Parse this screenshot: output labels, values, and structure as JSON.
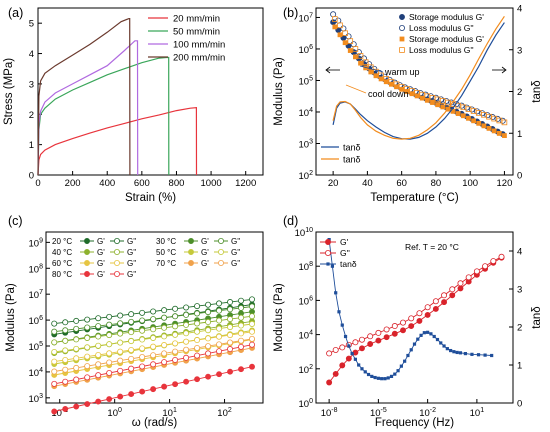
{
  "chart_data": [
    {
      "id": "a",
      "panel_label": "(a)",
      "type": "line",
      "xlabel": "Strain (%)",
      "ylabel": "Stress (MPa)",
      "xlim": [
        0,
        1300
      ],
      "ylim": [
        0,
        5.5
      ],
      "xticks": [
        0,
        200,
        400,
        600,
        800,
        1000,
        1200
      ],
      "yticks": [
        0,
        1,
        2,
        3,
        4,
        5
      ],
      "legend_position": "top-right",
      "series": [
        {
          "name": "20 mm/min",
          "color": "#e8343c",
          "x": [
            0,
            5,
            15,
            40,
            100,
            200,
            300,
            400,
            500,
            600,
            700,
            800,
            880,
            915,
            916
          ],
          "y": [
            0,
            0.5,
            0.68,
            0.82,
            1.0,
            1.2,
            1.38,
            1.55,
            1.7,
            1.85,
            1.98,
            2.12,
            2.2,
            2.22,
            0
          ]
        },
        {
          "name": "50 mm/min",
          "color": "#3aa65a",
          "x": [
            0,
            5,
            15,
            40,
            100,
            200,
            300,
            400,
            500,
            600,
            700,
            740,
            755,
            756
          ],
          "y": [
            0,
            1.5,
            2.0,
            2.2,
            2.5,
            2.8,
            3.05,
            3.3,
            3.5,
            3.7,
            3.85,
            3.87,
            3.87,
            0
          ]
        },
        {
          "name": "100 mm/min",
          "color": "#b06ae0",
          "x": [
            0,
            5,
            15,
            40,
            100,
            200,
            300,
            400,
            500,
            560,
            575,
            576
          ],
          "y": [
            0,
            1.7,
            2.1,
            2.4,
            2.7,
            3.0,
            3.3,
            3.6,
            4.1,
            4.42,
            4.42,
            0
          ]
        },
        {
          "name": "200 mm/min",
          "color": "#6b3a2e",
          "x": [
            0,
            5,
            15,
            40,
            100,
            200,
            300,
            400,
            480,
            525,
            530,
            531
          ],
          "y": [
            0,
            2.6,
            3.1,
            3.35,
            3.6,
            3.95,
            4.3,
            4.7,
            5.05,
            5.15,
            5.15,
            0
          ]
        }
      ]
    },
    {
      "id": "b",
      "panel_label": "(b)",
      "type": "scatter",
      "xlabel": "Temperature (°C)",
      "ylabel": "Modulus (Pa)",
      "y2label": "tanδ",
      "xlim": [
        10,
        125
      ],
      "ylim_log": [
        2,
        7.3
      ],
      "y2lim": [
        0,
        4
      ],
      "xticks": [
        20,
        40,
        60,
        80,
        100,
        120
      ],
      "yticks_exp": [
        2,
        3,
        4,
        5,
        6,
        7
      ],
      "y2ticks": [
        0,
        1,
        2,
        3,
        4
      ],
      "annotations": [
        "warm up",
        "cool down"
      ],
      "legend_position": "top-right",
      "series": [
        {
          "name": "Storage modulus G'",
          "color": "#1f3f7a",
          "marker": "circle-filled",
          "axis": "left",
          "x": [
            20,
            23,
            26,
            29,
            32,
            35,
            38,
            41,
            44,
            47,
            50,
            53,
            56,
            59,
            62,
            65,
            68,
            71,
            74,
            77,
            80,
            83,
            86,
            89,
            92,
            95,
            98,
            101,
            104,
            107,
            110,
            113,
            116,
            119
          ],
          "logy": [
            6.85,
            6.6,
            6.35,
            6.1,
            5.9,
            5.7,
            5.52,
            5.38,
            5.25,
            5.14,
            5.04,
            4.95,
            4.87,
            4.79,
            4.71,
            4.64,
            4.57,
            4.5,
            4.43,
            4.36,
            4.29,
            4.22,
            4.15,
            4.08,
            4.01,
            3.94,
            3.86,
            3.78,
            3.7,
            3.62,
            3.54,
            3.46,
            3.38,
            3.3
          ]
        },
        {
          "name": "Loss modulus G''",
          "color": "#1f3f7a",
          "marker": "circle-open",
          "axis": "left",
          "x": [
            20,
            23,
            26,
            29,
            32,
            35,
            38,
            41,
            44,
            47,
            50,
            53,
            56,
            59,
            62,
            65,
            68,
            71,
            74,
            77,
            80,
            83,
            86,
            89,
            92,
            95,
            98,
            101,
            104,
            107,
            110,
            113,
            116,
            119
          ],
          "logy": [
            7.1,
            6.9,
            6.65,
            6.4,
            6.15,
            5.9,
            5.7,
            5.52,
            5.37,
            5.24,
            5.12,
            5.02,
            4.93,
            4.85,
            4.78,
            4.72,
            4.66,
            4.6,
            4.55,
            4.5,
            4.45,
            4.4,
            4.35,
            4.3,
            4.25,
            4.2,
            4.14,
            4.08,
            4.02,
            3.96,
            3.9,
            3.84,
            3.78,
            3.72
          ]
        },
        {
          "name": "Storage modulus G'",
          "color": "#f28c1e",
          "marker": "square-filled",
          "axis": "left",
          "x": [
            21,
            24,
            27,
            30,
            33,
            36,
            39,
            42,
            45,
            48,
            51,
            54,
            57,
            60,
            63,
            66,
            69,
            72,
            75,
            78,
            81,
            84,
            87,
            90,
            93,
            96,
            99,
            102,
            105,
            108,
            111,
            114,
            117,
            120
          ],
          "logy": [
            6.7,
            6.45,
            6.2,
            5.95,
            5.75,
            5.55,
            5.4,
            5.27,
            5.15,
            5.05,
            4.96,
            4.88,
            4.8,
            4.72,
            4.65,
            4.58,
            4.51,
            4.44,
            4.37,
            4.3,
            4.23,
            4.16,
            4.09,
            4.02,
            3.95,
            3.88,
            3.8,
            3.72,
            3.64,
            3.56,
            3.48,
            3.4,
            3.32,
            3.25
          ]
        },
        {
          "name": "Loss modulus G''",
          "color": "#f28c1e",
          "marker": "square-open",
          "axis": "left",
          "x": [
            21,
            24,
            27,
            30,
            33,
            36,
            39,
            42,
            45,
            48,
            51,
            54,
            57,
            60,
            63,
            66,
            69,
            72,
            75,
            78,
            81,
            84,
            87,
            90,
            93,
            96,
            99,
            102,
            105,
            108,
            111,
            114,
            117,
            120
          ],
          "logy": [
            6.95,
            6.75,
            6.5,
            6.25,
            6.0,
            5.78,
            5.58,
            5.42,
            5.28,
            5.16,
            5.05,
            4.96,
            4.88,
            4.8,
            4.73,
            4.67,
            4.61,
            4.55,
            4.5,
            4.45,
            4.4,
            4.35,
            4.3,
            4.25,
            4.2,
            4.15,
            4.09,
            4.03,
            3.97,
            3.91,
            3.85,
            3.79,
            3.73,
            3.67
          ]
        },
        {
          "name": "tanδ",
          "color": "#1f4e9a",
          "marker": "line",
          "axis": "right",
          "x": [
            20,
            22,
            24,
            27,
            30,
            33,
            36,
            40,
            45,
            50,
            55,
            60,
            65,
            70,
            75,
            80,
            85,
            90,
            95,
            100,
            105,
            110,
            115,
            120
          ],
          "y": [
            1.2,
            1.6,
            1.72,
            1.75,
            1.7,
            1.58,
            1.45,
            1.3,
            1.15,
            1.02,
            0.92,
            0.87,
            0.86,
            0.9,
            1.0,
            1.15,
            1.35,
            1.6,
            1.9,
            2.25,
            2.6,
            3.0,
            3.35,
            3.65
          ]
        },
        {
          "name": "tanδ",
          "color": "#f28c1e",
          "marker": "line",
          "axis": "right",
          "x": [
            20,
            22,
            24,
            27,
            30,
            33,
            36,
            40,
            45,
            50,
            55,
            60,
            65,
            70,
            75,
            80,
            85,
            90,
            95,
            100,
            105,
            110,
            115,
            120
          ],
          "y": [
            1.3,
            1.65,
            1.75,
            1.76,
            1.7,
            1.55,
            1.38,
            1.2,
            1.05,
            0.95,
            0.88,
            0.86,
            0.88,
            0.95,
            1.08,
            1.25,
            1.48,
            1.75,
            2.05,
            2.4,
            2.78,
            3.15,
            3.5,
            3.8
          ]
        }
      ]
    },
    {
      "id": "c",
      "panel_label": "(c)",
      "type": "scatter",
      "xlabel": "ω (rad/s)",
      "ylabel": "Modulus (Pa)",
      "xlim_log": [
        -1.25,
        2.7
      ],
      "ylim_log": [
        2.8,
        9.4
      ],
      "xticks_exp": [
        -1,
        0,
        1,
        2
      ],
      "yticks_exp": [
        3,
        4,
        5,
        6,
        7,
        8,
        9
      ],
      "legend_position": "top-left",
      "temperatures": [
        {
          "label": "20 °C",
          "color": "#1f6b2a",
          "gp0": 5.8,
          "gpp0": 6.15,
          "slope": 0.32
        },
        {
          "label": "30 °C",
          "color": "#4d8f2a",
          "gp0": 5.5,
          "gpp0": 5.85,
          "slope": 0.33
        },
        {
          "label": "40 °C",
          "color": "#8db12d",
          "gp0": 5.1,
          "gpp0": 5.45,
          "slope": 0.34
        },
        {
          "label": "50 °C",
          "color": "#c5c93a",
          "gp0": 4.7,
          "gpp0": 5.1,
          "slope": 0.36
        },
        {
          "label": "60 °C",
          "color": "#e6c542",
          "gp0": 4.3,
          "gpp0": 4.75,
          "slope": 0.38
        },
        {
          "label": "70 °C",
          "color": "#f0a24b",
          "gp0": 3.9,
          "gpp0": 4.4,
          "slope": 0.41
        },
        {
          "label": "80 °C",
          "color": "#e8343c",
          "gp0": 3.0,
          "gpp0": 4.0,
          "slope": 0.48
        }
      ],
      "legend_gp": "G'",
      "legend_gpp": "G''",
      "logx": [
        -1.1,
        -0.9,
        -0.7,
        -0.5,
        -0.3,
        -0.1,
        0.1,
        0.3,
        0.5,
        0.7,
        0.9,
        1.1,
        1.3,
        1.5,
        1.7,
        1.9,
        2.1,
        2.3,
        2.5
      ]
    },
    {
      "id": "d",
      "panel_label": "(d)",
      "type": "scatter",
      "xlabel": "Frequency (Hz)",
      "ylabel": "Modulus (Pa)",
      "y2label": "tanδ",
      "annotation": "Ref. T = 20 °C",
      "xlim_log": [
        -8.8,
        3.2
      ],
      "ylim_log": [
        0,
        10
      ],
      "y2lim": [
        0,
        4.5
      ],
      "xticks_exp": [
        -8,
        -5,
        -2,
        1
      ],
      "yticks_exp": [
        0,
        2,
        4,
        6,
        8,
        10
      ],
      "y2ticks": [
        0,
        1,
        2,
        3,
        4
      ],
      "legend_position": "top-left",
      "series": [
        {
          "name": "G'",
          "color": "#d9232b",
          "marker": "circle-filled",
          "axis": "left",
          "logx": [
            -8.0,
            -7.6,
            -7.2,
            -6.8,
            -6.4,
            -6.0,
            -5.5,
            -5.0,
            -4.5,
            -4.0,
            -3.5,
            -3.0,
            -2.5,
            -2.0,
            -1.5,
            -1.0,
            -0.5,
            0.0,
            0.5,
            1.0,
            1.5,
            2.0,
            2.5
          ],
          "logy": [
            1.2,
            1.7,
            2.2,
            2.6,
            2.95,
            3.2,
            3.45,
            3.65,
            3.85,
            4.05,
            4.25,
            4.5,
            4.8,
            5.15,
            5.5,
            5.9,
            6.3,
            6.7,
            7.1,
            7.5,
            7.85,
            8.2,
            8.5
          ]
        },
        {
          "name": "G''",
          "color": "#d9232b",
          "marker": "circle-open",
          "axis": "left",
          "logx": [
            -8.0,
            -7.6,
            -7.2,
            -6.8,
            -6.4,
            -6.0,
            -5.5,
            -5.0,
            -4.5,
            -4.0,
            -3.5,
            -3.0,
            -2.5,
            -2.0,
            -1.5,
            -1.0,
            -0.5,
            0.0,
            0.5,
            1.0,
            1.5,
            2.0,
            2.5
          ],
          "logy": [
            2.9,
            3.1,
            3.25,
            3.4,
            3.55,
            3.7,
            3.9,
            4.1,
            4.3,
            4.5,
            4.7,
            4.95,
            5.25,
            5.6,
            5.95,
            6.3,
            6.65,
            7.0,
            7.35,
            7.7,
            8.0,
            8.3,
            8.55
          ]
        },
        {
          "name": "tanδ",
          "color": "#1f4e9a",
          "marker": "square-line",
          "axis": "right",
          "logx": [
            -8.0,
            -7.8,
            -7.6,
            -7.4,
            -7.2,
            -7.0,
            -6.8,
            -6.6,
            -6.4,
            -6.2,
            -6.0,
            -5.8,
            -5.6,
            -5.4,
            -5.2,
            -5.0,
            -4.8,
            -4.6,
            -4.4,
            -4.2,
            -4.0,
            -3.8,
            -3.6,
            -3.4,
            -3.2,
            -3.0,
            -2.8,
            -2.6,
            -2.4,
            -2.2,
            -2.0,
            -1.8,
            -1.6,
            -1.4,
            -1.2,
            -1.0,
            -0.8,
            -0.6,
            -0.4,
            -0.2,
            0.0,
            0.3,
            0.7,
            1.1,
            1.5,
            1.9
          ],
          "y": [
            4.3,
            3.6,
            2.9,
            2.4,
            2.05,
            1.75,
            1.5,
            1.3,
            1.15,
            1.0,
            0.9,
            0.82,
            0.75,
            0.7,
            0.67,
            0.65,
            0.64,
            0.64,
            0.66,
            0.7,
            0.76,
            0.85,
            0.97,
            1.1,
            1.25,
            1.4,
            1.55,
            1.68,
            1.78,
            1.85,
            1.86,
            1.82,
            1.75,
            1.67,
            1.58,
            1.5,
            1.43,
            1.38,
            1.35,
            1.33,
            1.32,
            1.3,
            1.28,
            1.27,
            1.26,
            1.25
          ]
        }
      ]
    }
  ]
}
